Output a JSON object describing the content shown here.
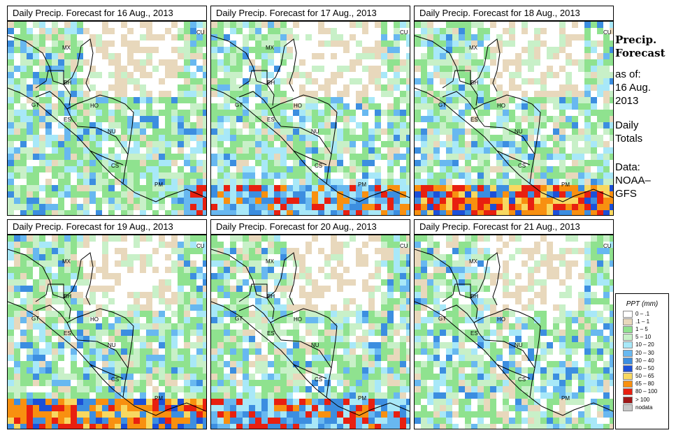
{
  "panels": [
    {
      "title": "Daily Precip. Forecast for  16 Aug., 2013",
      "seed": 11,
      "heavy": "south-east"
    },
    {
      "title": "Daily Precip. Forecast for  17 Aug., 2013",
      "seed": 23,
      "heavy": "south"
    },
    {
      "title": "Daily Precip. Forecast for  18 Aug., 2013",
      "seed": 37,
      "heavy": "south-strong"
    },
    {
      "title": "Daily Precip. Forecast for  19 Aug., 2013",
      "seed": 41,
      "heavy": "south-strong"
    },
    {
      "title": "Daily Precip. Forecast for  20 Aug., 2013",
      "seed": 53,
      "heavy": "south"
    },
    {
      "title": "Daily Precip. Forecast for  21 Aug., 2013",
      "seed": 67,
      "heavy": "light"
    }
  ],
  "country_labels": [
    "CU",
    "MX",
    "BH",
    "GT",
    "HO",
    "ES",
    "NU",
    "CS",
    "PM"
  ],
  "side": {
    "title_line1": "Precip.",
    "title_line2": "Forecast",
    "as_of_label": "as of:",
    "date_line1": "16 Aug.",
    "date_line2": "2013",
    "totals_line1": "Daily",
    "totals_line2": "Totals",
    "data_line1": "Data:",
    "data_line2": "NOAA–",
    "data_line3": "GFS"
  },
  "legend": {
    "title": "PPT (mm)",
    "items": [
      {
        "label": "0 – .1",
        "color": "#ffffff"
      },
      {
        "label": ".1 – 1",
        "color": "#e8d8bc"
      },
      {
        "label": "1 – 5",
        "color": "#8fe28f"
      },
      {
        "label": "5 – 10",
        "color": "#c8f0c8"
      },
      {
        "label": "10 – 20",
        "color": "#a8e8f8"
      },
      {
        "label": "20 – 30",
        "color": "#68b8f0"
      },
      {
        "label": "30 – 40",
        "color": "#3c8ee0"
      },
      {
        "label": "40 – 50",
        "color": "#1c50d8"
      },
      {
        "label": "50 – 65",
        "color": "#f8d860"
      },
      {
        "label": "65 – 80",
        "color": "#f89010"
      },
      {
        "label": "80 – 100",
        "color": "#e82010"
      },
      {
        "label": "> 100",
        "color": "#a01818"
      },
      {
        "label": "nodata",
        "color": "#c8c8c8"
      }
    ]
  }
}
